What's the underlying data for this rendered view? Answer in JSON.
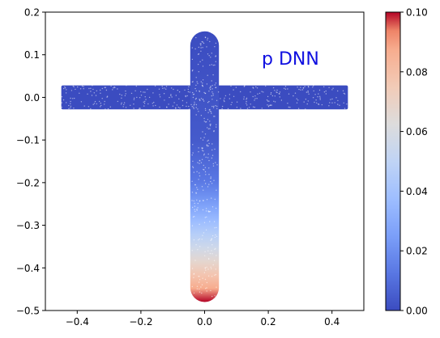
{
  "chart_data": {
    "type": "scatter",
    "title": "",
    "annotation": "p DNN",
    "annotation_color": "#1010e0",
    "xlabel": "",
    "ylabel": "",
    "xlim": [
      -0.5,
      0.5
    ],
    "ylim": [
      -0.5,
      0.2
    ],
    "xticks": [
      -0.4,
      -0.2,
      0.0,
      0.2,
      0.4
    ],
    "xtick_labels": [
      "−0.4",
      "−0.2",
      "0.0",
      "0.2",
      "0.4"
    ],
    "yticks": [
      -0.5,
      -0.4,
      -0.3,
      -0.2,
      -0.1,
      0.0,
      0.1,
      0.2
    ],
    "ytick_labels": [
      "−0.5",
      "−0.4",
      "−0.3",
      "−0.2",
      "−0.1",
      "0.0",
      "0.1",
      "0.2"
    ],
    "colormap": "coolwarm",
    "colorbar": {
      "range": [
        0.0,
        0.1
      ],
      "ticks": [
        0.0,
        0.02,
        0.04,
        0.06,
        0.08,
        0.1
      ],
      "tick_labels": [
        "0.00",
        "0.02",
        "0.04",
        "0.06",
        "0.08",
        "0.10"
      ]
    },
    "shapes": [
      {
        "name": "horizontal-bar",
        "x_range": [
          -0.45,
          0.45
        ],
        "y_range": [
          -0.028,
          0.028
        ],
        "value": 0.0
      },
      {
        "name": "vertical-bar",
        "x_range": [
          -0.045,
          0.045
        ],
        "y_range": [
          -0.48,
          0.155
        ],
        "value_profile": [
          {
            "y": 0.155,
            "value": 0.0
          },
          {
            "y": -0.1,
            "value": 0.004
          },
          {
            "y": -0.2,
            "value": 0.013
          },
          {
            "y": -0.25,
            "value": 0.025
          },
          {
            "y": -0.3,
            "value": 0.04
          },
          {
            "y": -0.35,
            "value": 0.055
          },
          {
            "y": -0.4,
            "value": 0.072
          },
          {
            "y": -0.45,
            "value": 0.088
          },
          {
            "y": -0.48,
            "value": 0.1
          }
        ]
      }
    ]
  }
}
